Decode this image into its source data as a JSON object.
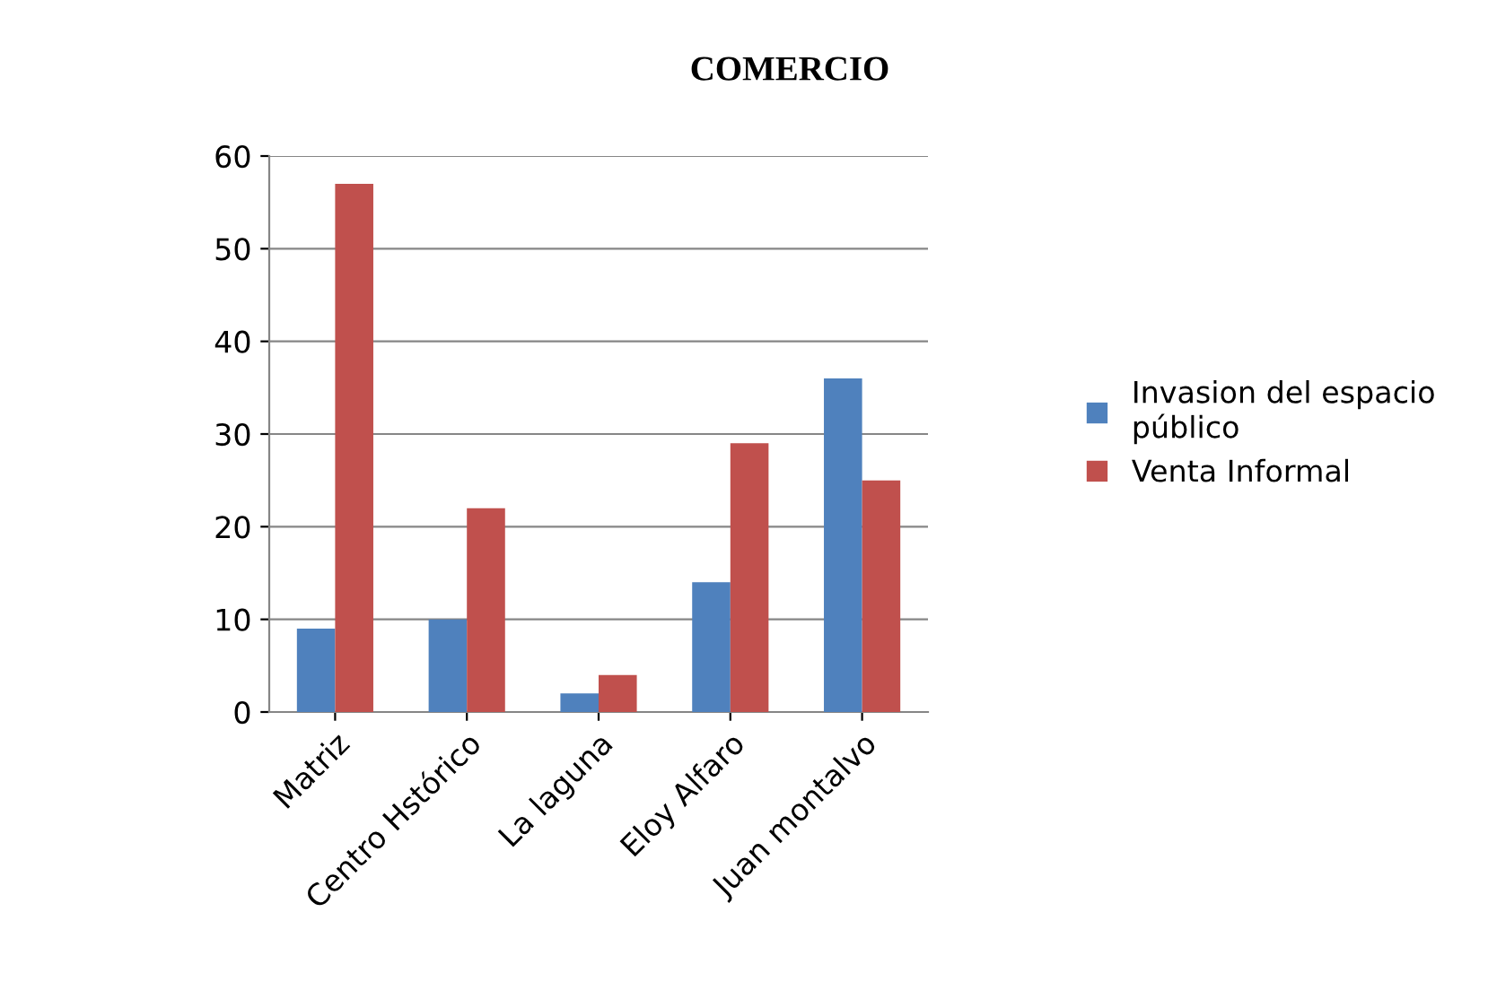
{
  "chart_data": {
    "type": "bar",
    "title": "COMERCIO",
    "categories": [
      "Matriz",
      "Centro Hstórico",
      "La laguna",
      "Eloy Alfaro",
      "Juan montalvo"
    ],
    "series": [
      {
        "name": "Invasion del espacio\npúblico",
        "color": "#4f81bd",
        "values": [
          9,
          10,
          2,
          14,
          36
        ]
      },
      {
        "name": "Venta Informal",
        "color": "#c0504d",
        "values": [
          57,
          22,
          4,
          29,
          25
        ]
      }
    ],
    "ylim": [
      0,
      60
    ],
    "yticks": [
      0,
      10,
      20,
      30,
      40,
      50,
      60
    ],
    "grid": "y",
    "legend": "right"
  }
}
